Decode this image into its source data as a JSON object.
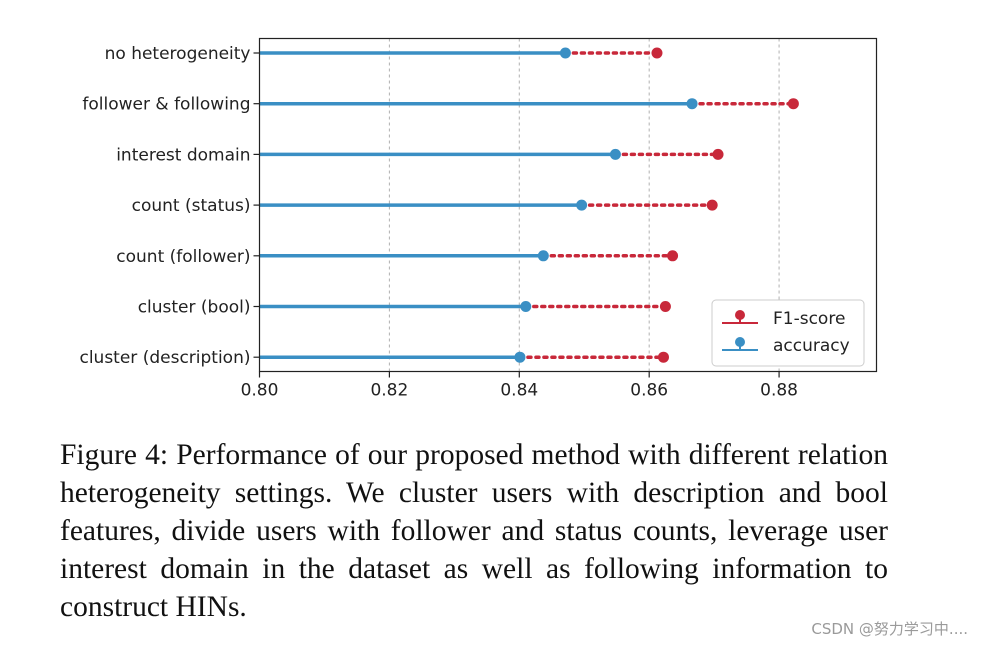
{
  "chart_data": {
    "type": "lollipop",
    "categories": [
      "no heterogeneity",
      "follower & following",
      "interest domain",
      "count (status)",
      "count (follower)",
      "cluster (bool)",
      "cluster (description)"
    ],
    "series": [
      {
        "name": "F1-score",
        "values": [
          0.8612,
          0.8822,
          0.8706,
          0.8697,
          0.8636,
          0.8625,
          0.8622
        ],
        "color": "#c8283a",
        "style": "dotted"
      },
      {
        "name": "accuracy",
        "values": [
          0.8471,
          0.8666,
          0.8548,
          0.8496,
          0.8437,
          0.841,
          0.8401
        ],
        "color": "#3a8fc4",
        "style": "solid"
      }
    ],
    "xlim": [
      0.8,
      0.895
    ],
    "xticks": [
      "0.80",
      "0.82",
      "0.84",
      "0.86",
      "0.88"
    ],
    "grid": "vertical-dashed",
    "legend_position": "lower-right"
  },
  "caption": "Figure 4: Performance of our proposed method with different relation heterogeneity settings. We cluster users with description and bool features, divide users with follower and status counts, leverage user interest domain in the dataset as well as following information to construct HINs.",
  "watermark": "CSDN @努力学习中...."
}
